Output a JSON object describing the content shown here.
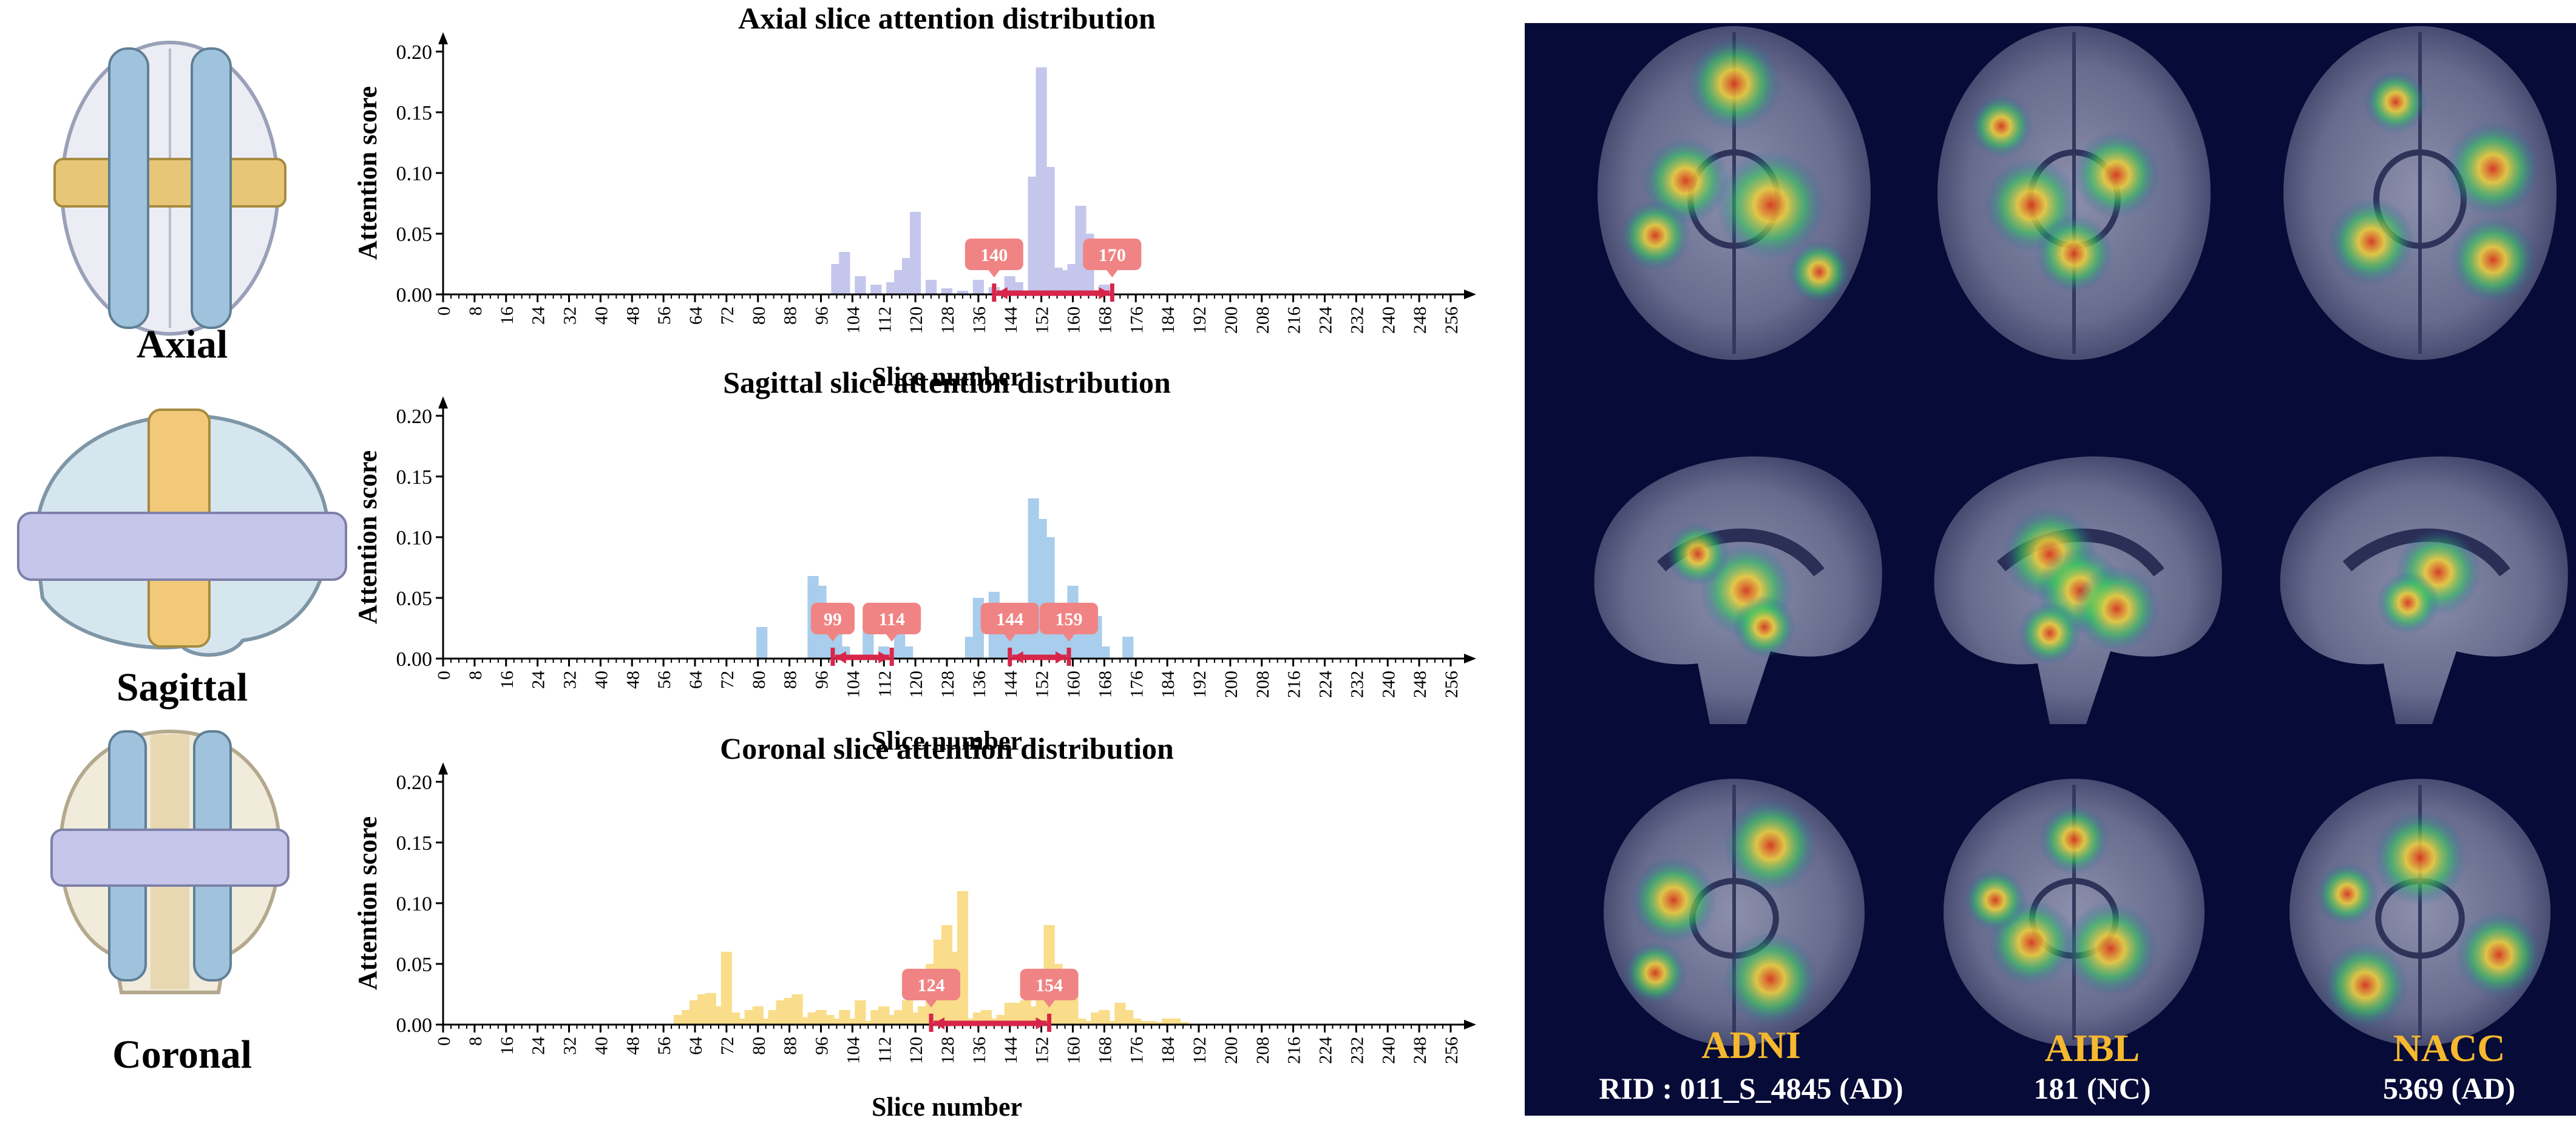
{
  "views": [
    {
      "name": "Axial"
    },
    {
      "name": "Sagittal"
    },
    {
      "name": "Coronal"
    }
  ],
  "colors": {
    "axial": "#c4c6ec",
    "sagittal": "#a9cdec",
    "coronal": "#f9dd8a",
    "bracket": "#d8254a",
    "label_box": "#f08484",
    "panel_bg": "#060b37",
    "dataset_name": "#f5b82e"
  },
  "chart_data": [
    {
      "type": "bar",
      "title": "Axial slice attention distribution",
      "xlabel": "Slice number",
      "ylabel": "Attention score",
      "xlim": [
        0,
        256
      ],
      "ylim": [
        0,
        0.2
      ],
      "xticks": [
        0,
        8,
        16,
        24,
        32,
        40,
        48,
        56,
        64,
        72,
        80,
        88,
        96,
        104,
        112,
        120,
        128,
        136,
        144,
        152,
        160,
        168,
        176,
        184,
        192,
        200,
        208,
        216,
        224,
        232,
        240,
        248,
        256
      ],
      "yticks": [
        "0.00",
        "0.05",
        "0.10",
        "0.15",
        "0.20"
      ],
      "bar_width": 2.8,
      "x": [
        100,
        102,
        106,
        110,
        114,
        116,
        118,
        120,
        124,
        128,
        132,
        136,
        140,
        144,
        146,
        150,
        152,
        154,
        156,
        158,
        160,
        162,
        164,
        168
      ],
      "values": [
        0.025,
        0.035,
        0.015,
        0.008,
        0.01,
        0.02,
        0.03,
        0.068,
        0.012,
        0.005,
        0.003,
        0.012,
        0.006,
        0.015,
        0.01,
        0.097,
        0.187,
        0.105,
        0.022,
        0.02,
        0.025,
        0.073,
        0.05,
        0.008
      ],
      "intervals": [
        {
          "start": 140,
          "end": 170,
          "start_label": "140",
          "end_label": "170"
        }
      ]
    },
    {
      "type": "bar",
      "title": "Sagittal slice attention distribution",
      "xlabel": "Slice number",
      "ylabel": "Attention score",
      "xlim": [
        0,
        256
      ],
      "ylim": [
        0,
        0.2
      ],
      "xticks": [
        0,
        8,
        16,
        24,
        32,
        40,
        48,
        56,
        64,
        72,
        80,
        88,
        96,
        104,
        112,
        120,
        128,
        136,
        144,
        152,
        160,
        168,
        176,
        184,
        192,
        200,
        208,
        216,
        224,
        232,
        240,
        248,
        256
      ],
      "yticks": [
        "0.00",
        "0.05",
        "0.10",
        "0.15",
        "0.20"
      ],
      "bar_width": 2.8,
      "x": [
        81,
        94,
        96,
        98,
        100,
        102,
        108,
        112,
        116,
        118,
        134,
        136,
        140,
        142,
        144,
        146,
        148,
        150,
        152,
        154,
        156,
        158,
        160,
        162,
        164,
        166,
        168,
        174
      ],
      "values": [
        0.026,
        0.068,
        0.06,
        0.04,
        0.02,
        0.01,
        0.032,
        0.01,
        0.027,
        0.01,
        0.018,
        0.05,
        0.055,
        0.038,
        0.03,
        0.04,
        0.03,
        0.132,
        0.115,
        0.1,
        0.04,
        0.035,
        0.06,
        0.045,
        0.02,
        0.035,
        0.01,
        0.018
      ],
      "intervals": [
        {
          "start": 99,
          "end": 114,
          "start_label": "99",
          "end_label": "114"
        },
        {
          "start": 144,
          "end": 159,
          "start_label": "144",
          "end_label": "159"
        }
      ]
    },
    {
      "type": "bar",
      "title": "Coronal slice attention distribution",
      "xlabel": "Slice number",
      "ylabel": "Attention score",
      "xlim": [
        0,
        256
      ],
      "ylim": [
        0,
        0.2
      ],
      "xticks": [
        0,
        8,
        16,
        24,
        32,
        40,
        48,
        56,
        64,
        72,
        80,
        88,
        96,
        104,
        112,
        120,
        128,
        136,
        144,
        152,
        160,
        168,
        176,
        184,
        192,
        200,
        208,
        216,
        224,
        232,
        240,
        248,
        256
      ],
      "yticks": [
        "0.00",
        "0.05",
        "0.10",
        "0.15",
        "0.20"
      ],
      "bar_width": 2.8,
      "x": [
        60,
        62,
        64,
        66,
        68,
        70,
        72,
        74,
        76,
        78,
        80,
        82,
        84,
        86,
        88,
        90,
        92,
        94,
        96,
        98,
        100,
        102,
        104,
        106,
        108,
        110,
        112,
        114,
        116,
        118,
        120,
        122,
        124,
        126,
        128,
        130,
        132,
        134,
        136,
        138,
        140,
        142,
        144,
        146,
        148,
        150,
        152,
        154,
        156,
        158,
        160,
        162,
        164,
        166,
        168,
        170,
        172,
        174,
        176,
        178,
        180,
        182,
        184,
        186,
        188
      ],
      "values": [
        0.008,
        0.012,
        0.02,
        0.025,
        0.026,
        0.015,
        0.06,
        0.01,
        0.005,
        0.012,
        0.015,
        0.005,
        0.012,
        0.02,
        0.022,
        0.025,
        0.006,
        0.01,
        0.012,
        0.008,
        0.005,
        0.012,
        0.005,
        0.02,
        0.003,
        0.012,
        0.015,
        0.008,
        0.012,
        0.02,
        0.01,
        0.015,
        0.05,
        0.07,
        0.082,
        0.06,
        0.11,
        0.005,
        0.01,
        0.012,
        0.005,
        0.008,
        0.018,
        0.018,
        0.02,
        0.015,
        0.04,
        0.082,
        0.05,
        0.02,
        0.04,
        0.005,
        0.003,
        0.01,
        0.012,
        0.003,
        0.018,
        0.012,
        0.005,
        0.003,
        0.003,
        0.002,
        0.005,
        0.005,
        0.002
      ],
      "intervals": [
        {
          "start": 124,
          "end": 154,
          "start_label": "124",
          "end_label": "154"
        }
      ]
    }
  ],
  "heatmap_panel": {
    "datasets": [
      {
        "name": "ADNI",
        "id": "RID : 011_S_4845 (AD)"
      },
      {
        "name": "AIBL",
        "id": "181 (NC)"
      },
      {
        "name": "NACC",
        "id": "5369 (AD)"
      }
    ]
  }
}
